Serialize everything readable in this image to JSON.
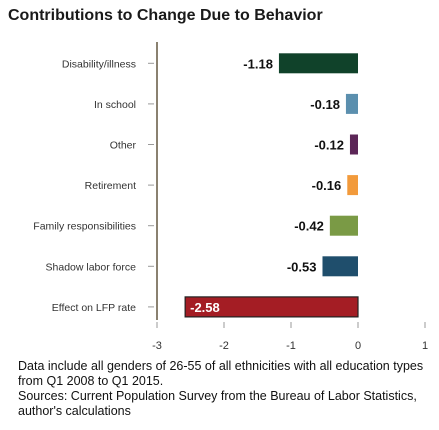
{
  "chart_data": {
    "type": "bar",
    "orientation": "horizontal",
    "title": "Contributions to Change Due to Behavior",
    "categories": [
      "Disability/illness",
      "In school",
      "Other",
      "Retirement",
      "Family responsibilities",
      "Shadow labor force",
      "Effect on LFP rate"
    ],
    "values": [
      -1.18,
      -0.18,
      -0.12,
      -0.16,
      -0.42,
      -0.53,
      -2.58
    ],
    "value_labels": [
      "-1.18",
      "-0.18",
      "-0.12",
      "-0.16",
      "-0.42",
      "-0.53",
      "-2.58"
    ],
    "colors": [
      "#10422a",
      "#5b8fae",
      "#5c2657",
      "#f29a3b",
      "#7a9a45",
      "#1f4e6c",
      "#a41d24"
    ],
    "xlim": [
      -3,
      1
    ],
    "xticks": [
      "-3",
      "-2",
      "-1",
      "0",
      "1"
    ],
    "xlabel": "",
    "ylabel": "",
    "grid": false,
    "legend": "none"
  },
  "notes": {
    "line1": "Data include all genders of 26-55 of all ethnicities with all education types from Q1 2008 to Q1 2015.",
    "line2": "Sources: Current Population Survey from the Bureau of Labor Statistics, author's calculations"
  }
}
